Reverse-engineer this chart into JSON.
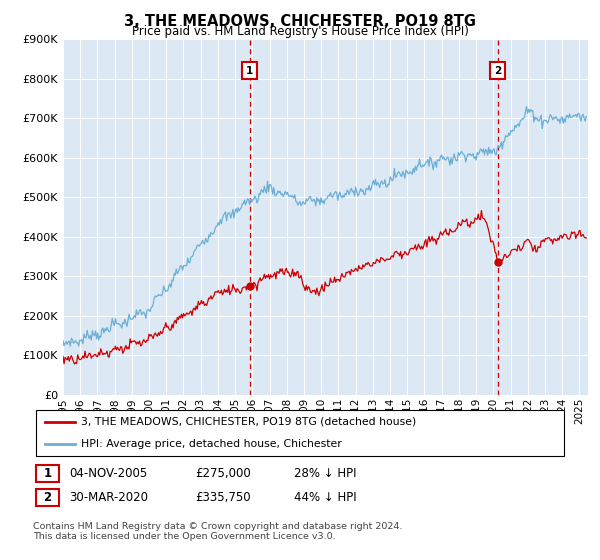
{
  "title": "3, THE MEADOWS, CHICHESTER, PO19 8TG",
  "subtitle": "Price paid vs. HM Land Registry's House Price Index (HPI)",
  "plot_bg_color": "#dce9f5",
  "ylim": [
    0,
    900000
  ],
  "yticks": [
    0,
    100000,
    200000,
    300000,
    400000,
    500000,
    600000,
    700000,
    800000,
    900000
  ],
  "xlim_start": 1995,
  "xlim_end": 2025.5,
  "sale1_date_x": 2005.85,
  "sale1_price": 275000,
  "sale1_label": "1",
  "sale2_date_x": 2020.25,
  "sale2_price": 335750,
  "sale2_label": "2",
  "hpi_line_color": "#6baed6",
  "price_line_color": "#cc0000",
  "dashed_line_color": "#cc0000",
  "legend_property_label": "3, THE MEADOWS, CHICHESTER, PO19 8TG (detached house)",
  "legend_hpi_label": "HPI: Average price, detached house, Chichester",
  "annotation1_date": "04-NOV-2005",
  "annotation1_price": "£275,000",
  "annotation1_pct": "28% ↓ HPI",
  "annotation2_date": "30-MAR-2020",
  "annotation2_price": "£335,750",
  "annotation2_pct": "44% ↓ HPI",
  "footer": "Contains HM Land Registry data © Crown copyright and database right 2024.\nThis data is licensed under the Open Government Licence v3.0."
}
